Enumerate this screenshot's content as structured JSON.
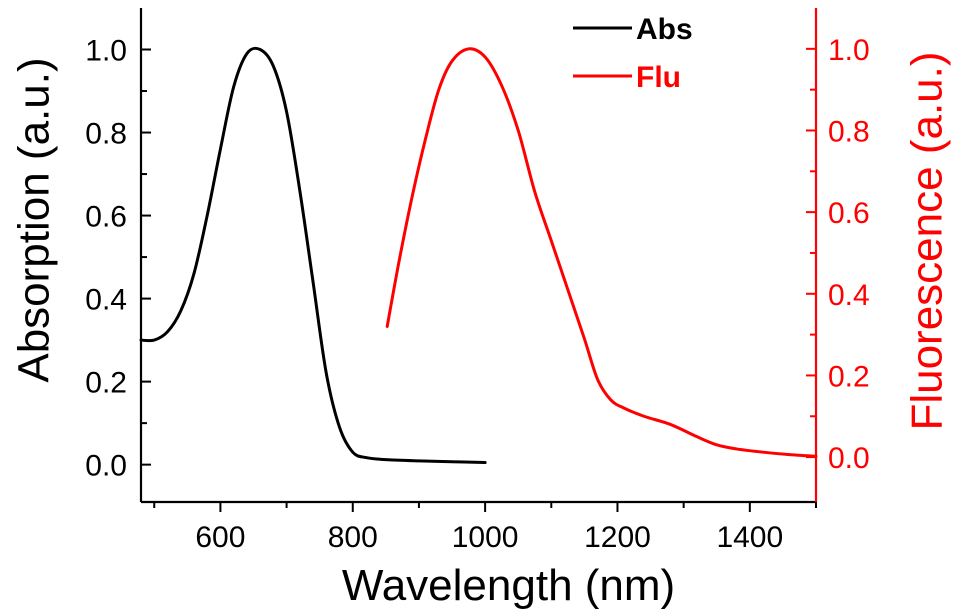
{
  "chart_data": {
    "type": "line",
    "title": "",
    "xlabel": "Wavelength (nm)",
    "ylabel": "Absorption (a.u.)",
    "ylabel_right": "Fluorescence (a.u.)",
    "xlim": [
      480,
      1500
    ],
    "ylim": [
      -0.09,
      1.1
    ],
    "ylim_right": [
      -0.11,
      1.1
    ],
    "x_ticks": [
      600,
      800,
      1000,
      1200,
      1400
    ],
    "x_tick_labels": [
      "600",
      "800",
      "1000",
      "1200",
      "1400"
    ],
    "y_ticks": [
      0.0,
      0.2,
      0.4,
      0.6,
      0.8,
      1.0
    ],
    "y_tick_labels": [
      "0.0",
      "0.2",
      "0.4",
      "0.6",
      "0.8",
      "1.0"
    ],
    "y_ticks_right": [
      0.0,
      0.2,
      0.4,
      0.6,
      0.8,
      1.0
    ],
    "y_tick_labels_right": [
      "0.0",
      "0.2",
      "0.4",
      "0.6",
      "0.8",
      "1.0"
    ],
    "grid": false,
    "legend_position": "top-right",
    "series": [
      {
        "name": "Abs",
        "axis": "left",
        "color": "#000000",
        "points": [
          [
            480,
            0.3
          ],
          [
            500,
            0.3
          ],
          [
            520,
            0.32
          ],
          [
            540,
            0.37
          ],
          [
            560,
            0.46
          ],
          [
            580,
            0.6
          ],
          [
            600,
            0.76
          ],
          [
            620,
            0.91
          ],
          [
            640,
            0.99
          ],
          [
            660,
            1.0
          ],
          [
            680,
            0.96
          ],
          [
            700,
            0.85
          ],
          [
            720,
            0.66
          ],
          [
            740,
            0.44
          ],
          [
            760,
            0.22
          ],
          [
            780,
            0.09
          ],
          [
            800,
            0.03
          ],
          [
            820,
            0.017
          ],
          [
            850,
            0.012
          ],
          [
            900,
            0.009
          ],
          [
            950,
            0.007
          ],
          [
            1000,
            0.005
          ]
        ]
      },
      {
        "name": "Flu",
        "axis": "right",
        "color": "#ff0000",
        "points": [
          [
            852,
            0.32
          ],
          [
            870,
            0.48
          ],
          [
            890,
            0.64
          ],
          [
            910,
            0.78
          ],
          [
            930,
            0.9
          ],
          [
            950,
            0.97
          ],
          [
            975,
            1.0
          ],
          [
            1000,
            0.98
          ],
          [
            1025,
            0.91
          ],
          [
            1050,
            0.8
          ],
          [
            1075,
            0.65
          ],
          [
            1100,
            0.53
          ],
          [
            1125,
            0.41
          ],
          [
            1150,
            0.29
          ],
          [
            1170,
            0.19
          ],
          [
            1190,
            0.14
          ],
          [
            1210,
            0.12
          ],
          [
            1240,
            0.1
          ],
          [
            1280,
            0.08
          ],
          [
            1320,
            0.05
          ],
          [
            1350,
            0.03
          ],
          [
            1380,
            0.02
          ],
          [
            1420,
            0.012
          ],
          [
            1460,
            0.006
          ],
          [
            1500,
            0.002
          ]
        ]
      }
    ]
  }
}
